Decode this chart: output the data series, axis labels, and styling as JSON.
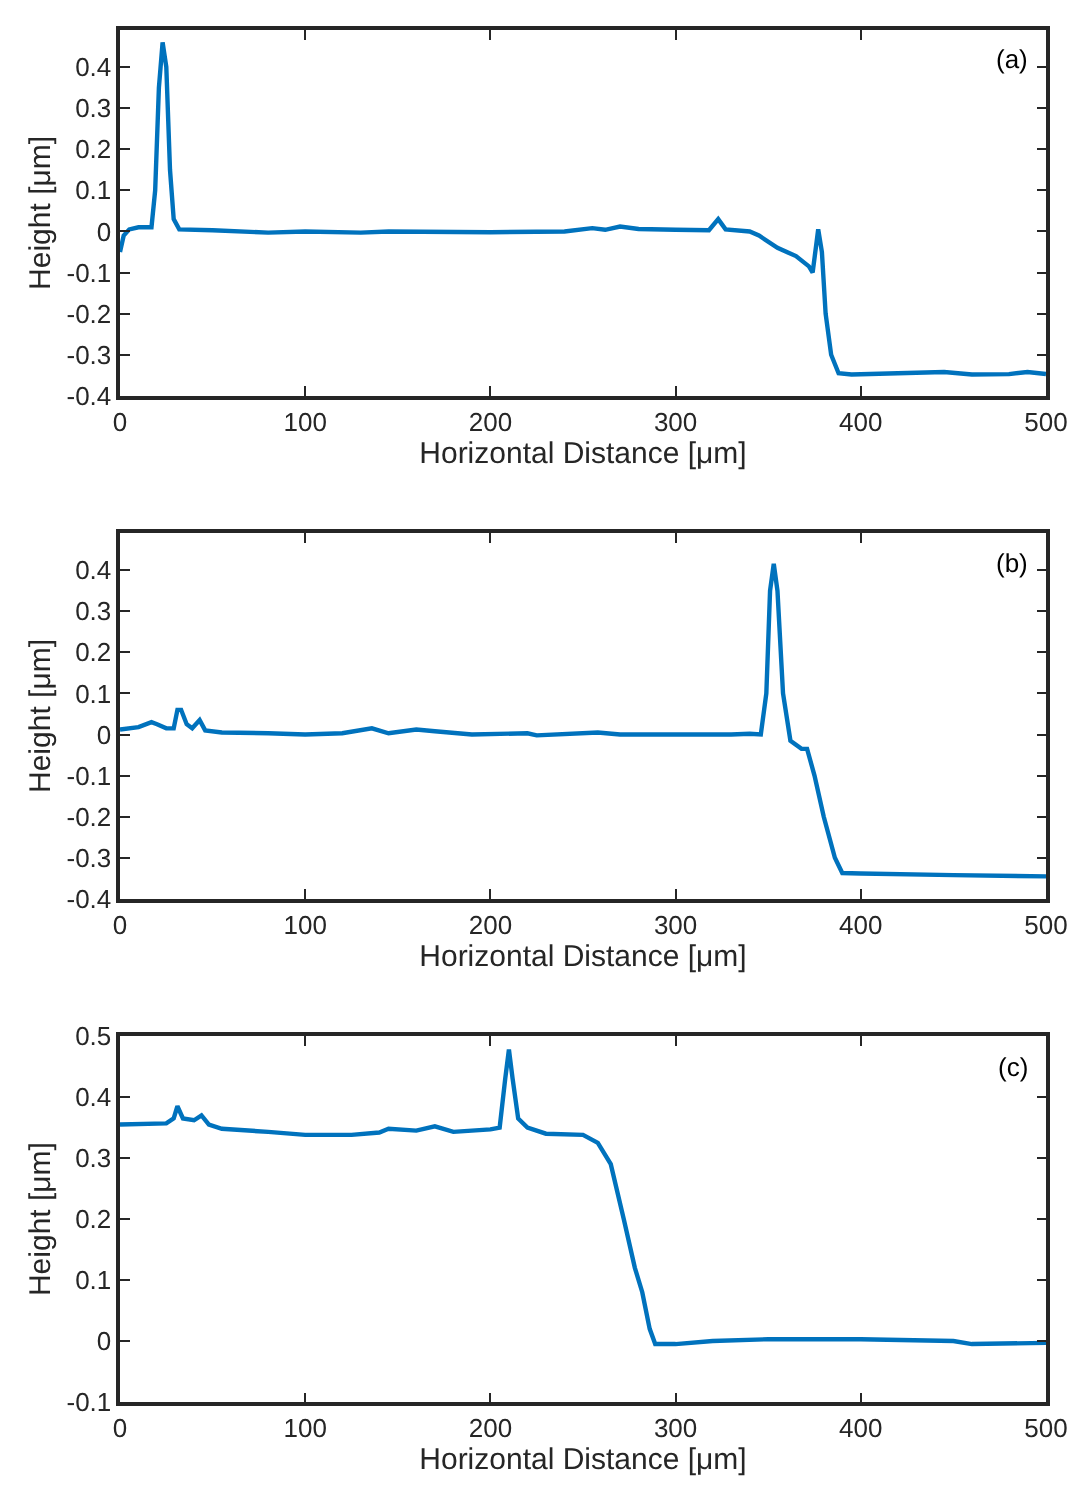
{
  "chart_data": [
    {
      "type": "line",
      "xlabel": "Horizontal Distance [μm]",
      "ylabel": "Height [μm]",
      "annotations": [
        "(a)"
      ],
      "xlim": [
        0,
        500
      ],
      "xticks": [
        0,
        100,
        200,
        300,
        400,
        500
      ],
      "ylim": [
        -0.4,
        0.49
      ],
      "yticks": [
        -0.4,
        -0.3,
        -0.2,
        -0.1,
        0,
        0.1,
        0.2,
        0.3,
        0.4
      ],
      "x": [
        0,
        2,
        5,
        10,
        17,
        19,
        21,
        23,
        25,
        27,
        29,
        32,
        50,
        80,
        100,
        130,
        145,
        200,
        240,
        255,
        262,
        270,
        280,
        300,
        318,
        323,
        327,
        340,
        345,
        355,
        365,
        372,
        374,
        376,
        377,
        379,
        381,
        384,
        388,
        395,
        420,
        445,
        460,
        480,
        490,
        500
      ],
      "series": [
        {
          "color": "#0072bd",
          "values": [
            -0.05,
            -0.01,
            0.005,
            0.01,
            0.01,
            0.1,
            0.35,
            0.46,
            0.4,
            0.15,
            0.03,
            0.005,
            0.003,
            -0.003,
            0.0,
            -0.003,
            0.0,
            -0.002,
            0.0,
            0.008,
            0.004,
            0.012,
            0.006,
            0.004,
            0.003,
            0.03,
            0.005,
            0.0,
            -0.01,
            -0.04,
            -0.06,
            -0.085,
            -0.1,
            -0.03,
            0.005,
            -0.05,
            -0.2,
            -0.3,
            -0.345,
            -0.348,
            -0.345,
            -0.342,
            -0.348,
            -0.347,
            -0.342,
            -0.347
          ]
        }
      ]
    },
    {
      "type": "line",
      "xlabel": "Horizontal Distance [μm]",
      "ylabel": "Height [μm]",
      "annotations": [
        "(b)"
      ],
      "xlim": [
        0,
        500
      ],
      "xticks": [
        0,
        100,
        200,
        300,
        400,
        500
      ],
      "ylim": [
        -0.4,
        0.49
      ],
      "yticks": [
        -0.4,
        -0.3,
        -0.2,
        -0.1,
        0,
        0.1,
        0.2,
        0.3,
        0.4
      ],
      "x": [
        0,
        10,
        17,
        20,
        25,
        29,
        31,
        33,
        36,
        39,
        43,
        46,
        55,
        80,
        100,
        120,
        136,
        145,
        160,
        170,
        190,
        220,
        225,
        258,
        270,
        330,
        340,
        346,
        349,
        351,
        353,
        355,
        358,
        362,
        368,
        371,
        375,
        380,
        386,
        390,
        400,
        450,
        500
      ],
      "series": [
        {
          "color": "#0072bd",
          "values": [
            0.012,
            0.018,
            0.03,
            0.025,
            0.015,
            0.015,
            0.06,
            0.06,
            0.025,
            0.015,
            0.035,
            0.01,
            0.005,
            0.003,
            0.0,
            0.003,
            0.015,
            0.003,
            0.012,
            0.008,
            0.0,
            0.003,
            -0.002,
            0.005,
            0.0,
            0.0,
            0.002,
            0.0,
            0.1,
            0.35,
            0.415,
            0.35,
            0.1,
            -0.015,
            -0.035,
            -0.035,
            -0.1,
            -0.2,
            -0.3,
            -0.337,
            -0.338,
            -0.342,
            -0.345
          ]
        }
      ]
    },
    {
      "type": "line",
      "xlabel": "Horizontal Distance [μm]",
      "ylabel": "Height [μm]",
      "annotations": [
        "(c)"
      ],
      "xlim": [
        0,
        500
      ],
      "xticks": [
        0,
        100,
        200,
        300,
        400,
        500
      ],
      "ylim": [
        -0.1,
        0.5
      ],
      "yticks": [
        -0.1,
        0,
        0.1,
        0.2,
        0.3,
        0.4,
        0.5
      ],
      "x": [
        0,
        25,
        29,
        31,
        34,
        40,
        44,
        48,
        55,
        80,
        100,
        125,
        140,
        145,
        160,
        170,
        180,
        200,
        205,
        208,
        210,
        212,
        215,
        220,
        230,
        250,
        258,
        265,
        272,
        278,
        282,
        286,
        289,
        300,
        320,
        350,
        400,
        450,
        460,
        500
      ],
      "series": [
        {
          "color": "#0072bd",
          "values": [
            0.355,
            0.357,
            0.365,
            0.385,
            0.365,
            0.362,
            0.37,
            0.355,
            0.348,
            0.343,
            0.338,
            0.338,
            0.342,
            0.348,
            0.345,
            0.352,
            0.343,
            0.347,
            0.35,
            0.43,
            0.478,
            0.43,
            0.365,
            0.35,
            0.34,
            0.338,
            0.325,
            0.29,
            0.2,
            0.12,
            0.08,
            0.02,
            -0.005,
            -0.005,
            0.0,
            0.003,
            0.003,
            0.0,
            -0.005,
            -0.003
          ]
        }
      ]
    }
  ]
}
